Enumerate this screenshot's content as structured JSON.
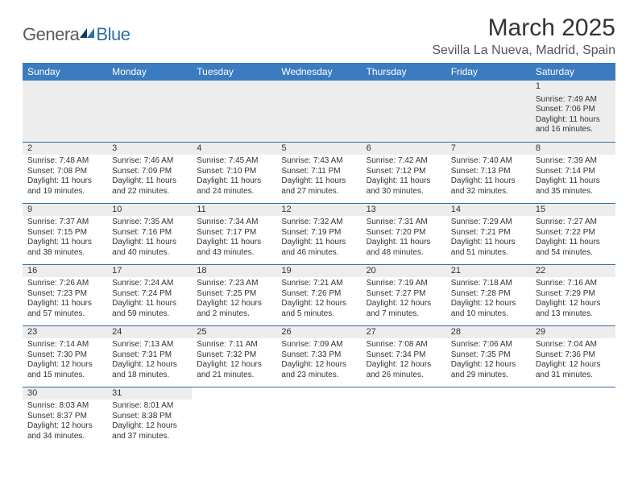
{
  "logo": {
    "part1": "Genera",
    "part2": "Blue"
  },
  "title": "March 2025",
  "location": "Sevilla La Nueva, Madrid, Spain",
  "colors": {
    "header_bg": "#3b7bbf",
    "header_text": "#ffffff",
    "border": "#2f6fa8",
    "daybar_bg": "#ededed",
    "text": "#333333",
    "logo_gray": "#5a5a5a",
    "logo_blue": "#2f6fa8"
  },
  "day_headers": [
    "Sunday",
    "Monday",
    "Tuesday",
    "Wednesday",
    "Thursday",
    "Friday",
    "Saturday"
  ],
  "weeks": [
    [
      null,
      null,
      null,
      null,
      null,
      null,
      {
        "n": "1",
        "sr": "Sunrise: 7:49 AM",
        "ss": "Sunset: 7:06 PM",
        "d1": "Daylight: 11 hours",
        "d2": "and 16 minutes."
      }
    ],
    [
      {
        "n": "2",
        "sr": "Sunrise: 7:48 AM",
        "ss": "Sunset: 7:08 PM",
        "d1": "Daylight: 11 hours",
        "d2": "and 19 minutes."
      },
      {
        "n": "3",
        "sr": "Sunrise: 7:46 AM",
        "ss": "Sunset: 7:09 PM",
        "d1": "Daylight: 11 hours",
        "d2": "and 22 minutes."
      },
      {
        "n": "4",
        "sr": "Sunrise: 7:45 AM",
        "ss": "Sunset: 7:10 PM",
        "d1": "Daylight: 11 hours",
        "d2": "and 24 minutes."
      },
      {
        "n": "5",
        "sr": "Sunrise: 7:43 AM",
        "ss": "Sunset: 7:11 PM",
        "d1": "Daylight: 11 hours",
        "d2": "and 27 minutes."
      },
      {
        "n": "6",
        "sr": "Sunrise: 7:42 AM",
        "ss": "Sunset: 7:12 PM",
        "d1": "Daylight: 11 hours",
        "d2": "and 30 minutes."
      },
      {
        "n": "7",
        "sr": "Sunrise: 7:40 AM",
        "ss": "Sunset: 7:13 PM",
        "d1": "Daylight: 11 hours",
        "d2": "and 32 minutes."
      },
      {
        "n": "8",
        "sr": "Sunrise: 7:39 AM",
        "ss": "Sunset: 7:14 PM",
        "d1": "Daylight: 11 hours",
        "d2": "and 35 minutes."
      }
    ],
    [
      {
        "n": "9",
        "sr": "Sunrise: 7:37 AM",
        "ss": "Sunset: 7:15 PM",
        "d1": "Daylight: 11 hours",
        "d2": "and 38 minutes."
      },
      {
        "n": "10",
        "sr": "Sunrise: 7:35 AM",
        "ss": "Sunset: 7:16 PM",
        "d1": "Daylight: 11 hours",
        "d2": "and 40 minutes."
      },
      {
        "n": "11",
        "sr": "Sunrise: 7:34 AM",
        "ss": "Sunset: 7:17 PM",
        "d1": "Daylight: 11 hours",
        "d2": "and 43 minutes."
      },
      {
        "n": "12",
        "sr": "Sunrise: 7:32 AM",
        "ss": "Sunset: 7:19 PM",
        "d1": "Daylight: 11 hours",
        "d2": "and 46 minutes."
      },
      {
        "n": "13",
        "sr": "Sunrise: 7:31 AM",
        "ss": "Sunset: 7:20 PM",
        "d1": "Daylight: 11 hours",
        "d2": "and 48 minutes."
      },
      {
        "n": "14",
        "sr": "Sunrise: 7:29 AM",
        "ss": "Sunset: 7:21 PM",
        "d1": "Daylight: 11 hours",
        "d2": "and 51 minutes."
      },
      {
        "n": "15",
        "sr": "Sunrise: 7:27 AM",
        "ss": "Sunset: 7:22 PM",
        "d1": "Daylight: 11 hours",
        "d2": "and 54 minutes."
      }
    ],
    [
      {
        "n": "16",
        "sr": "Sunrise: 7:26 AM",
        "ss": "Sunset: 7:23 PM",
        "d1": "Daylight: 11 hours",
        "d2": "and 57 minutes."
      },
      {
        "n": "17",
        "sr": "Sunrise: 7:24 AM",
        "ss": "Sunset: 7:24 PM",
        "d1": "Daylight: 11 hours",
        "d2": "and 59 minutes."
      },
      {
        "n": "18",
        "sr": "Sunrise: 7:23 AM",
        "ss": "Sunset: 7:25 PM",
        "d1": "Daylight: 12 hours",
        "d2": "and 2 minutes."
      },
      {
        "n": "19",
        "sr": "Sunrise: 7:21 AM",
        "ss": "Sunset: 7:26 PM",
        "d1": "Daylight: 12 hours",
        "d2": "and 5 minutes."
      },
      {
        "n": "20",
        "sr": "Sunrise: 7:19 AM",
        "ss": "Sunset: 7:27 PM",
        "d1": "Daylight: 12 hours",
        "d2": "and 7 minutes."
      },
      {
        "n": "21",
        "sr": "Sunrise: 7:18 AM",
        "ss": "Sunset: 7:28 PM",
        "d1": "Daylight: 12 hours",
        "d2": "and 10 minutes."
      },
      {
        "n": "22",
        "sr": "Sunrise: 7:16 AM",
        "ss": "Sunset: 7:29 PM",
        "d1": "Daylight: 12 hours",
        "d2": "and 13 minutes."
      }
    ],
    [
      {
        "n": "23",
        "sr": "Sunrise: 7:14 AM",
        "ss": "Sunset: 7:30 PM",
        "d1": "Daylight: 12 hours",
        "d2": "and 15 minutes."
      },
      {
        "n": "24",
        "sr": "Sunrise: 7:13 AM",
        "ss": "Sunset: 7:31 PM",
        "d1": "Daylight: 12 hours",
        "d2": "and 18 minutes."
      },
      {
        "n": "25",
        "sr": "Sunrise: 7:11 AM",
        "ss": "Sunset: 7:32 PM",
        "d1": "Daylight: 12 hours",
        "d2": "and 21 minutes."
      },
      {
        "n": "26",
        "sr": "Sunrise: 7:09 AM",
        "ss": "Sunset: 7:33 PM",
        "d1": "Daylight: 12 hours",
        "d2": "and 23 minutes."
      },
      {
        "n": "27",
        "sr": "Sunrise: 7:08 AM",
        "ss": "Sunset: 7:34 PM",
        "d1": "Daylight: 12 hours",
        "d2": "and 26 minutes."
      },
      {
        "n": "28",
        "sr": "Sunrise: 7:06 AM",
        "ss": "Sunset: 7:35 PM",
        "d1": "Daylight: 12 hours",
        "d2": "and 29 minutes."
      },
      {
        "n": "29",
        "sr": "Sunrise: 7:04 AM",
        "ss": "Sunset: 7:36 PM",
        "d1": "Daylight: 12 hours",
        "d2": "and 31 minutes."
      }
    ],
    [
      {
        "n": "30",
        "sr": "Sunrise: 8:03 AM",
        "ss": "Sunset: 8:37 PM",
        "d1": "Daylight: 12 hours",
        "d2": "and 34 minutes."
      },
      {
        "n": "31",
        "sr": "Sunrise: 8:01 AM",
        "ss": "Sunset: 8:38 PM",
        "d1": "Daylight: 12 hours",
        "d2": "and 37 minutes."
      },
      null,
      null,
      null,
      null,
      null
    ]
  ]
}
